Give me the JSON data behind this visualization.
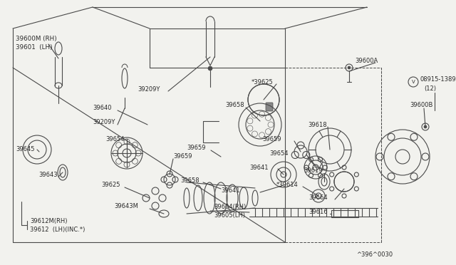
{
  "bg_color": "#f2f2ee",
  "line_color": "#4a4a4a",
  "text_color": "#2a2a2a",
  "watermark": "^396^0030",
  "figsize": [
    6.4,
    3.72
  ],
  "dpi": 100,
  "xlim": [
    0,
    640
  ],
  "ylim": [
    0,
    372
  ]
}
